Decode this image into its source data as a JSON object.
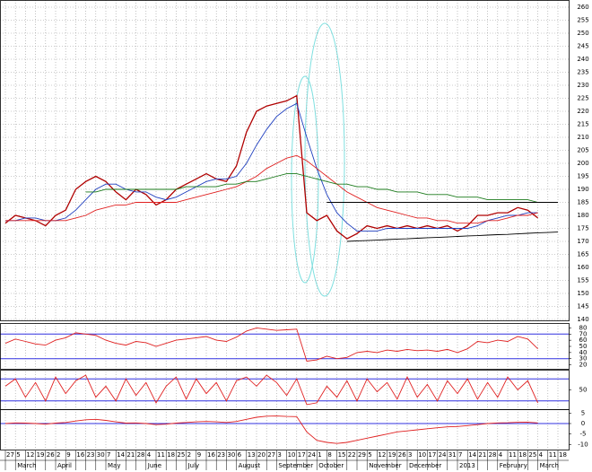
{
  "chart_data": [
    {
      "type": "line",
      "categories": [
        "27",
        "5",
        "12",
        "19",
        "26",
        "2",
        "9",
        "16",
        "23",
        "30",
        "7",
        "14",
        "21",
        "28",
        "4",
        "11",
        "18",
        "25",
        "2",
        "9",
        "16",
        "23",
        "30",
        "6",
        "13",
        "20",
        "27",
        "3",
        "10",
        "17",
        "24",
        "1",
        "8",
        "15",
        "22",
        "29",
        "5",
        "12",
        "19",
        "26",
        "3",
        "10",
        "17",
        "24",
        "31",
        "7",
        "14",
        "21",
        "28",
        "4",
        "11",
        "18",
        "25",
        "4",
        "11",
        "18"
      ],
      "months": [
        null,
        "March",
        null,
        null,
        null,
        "April",
        null,
        null,
        null,
        null,
        "May",
        null,
        null,
        null,
        "June",
        null,
        null,
        null,
        "July",
        null,
        null,
        null,
        null,
        "August",
        null,
        null,
        null,
        "September",
        null,
        null,
        null,
        "October",
        null,
        null,
        null,
        null,
        "November",
        null,
        null,
        null,
        "December",
        null,
        null,
        null,
        null,
        "2013",
        null,
        null,
        null,
        "February",
        null,
        null,
        null,
        "March",
        null,
        null
      ],
      "ylim": [
        140,
        260
      ],
      "yticks": [
        140,
        145,
        150,
        155,
        160,
        165,
        170,
        175,
        180,
        185,
        190,
        195,
        200,
        205,
        210,
        215,
        220,
        225,
        230,
        235,
        240,
        245,
        250,
        255,
        260
      ],
      "grid": true,
      "series": [
        {
          "color": "#b00000",
          "values": [
            177,
            180,
            179,
            178,
            176,
            180,
            182,
            190,
            193,
            195,
            193,
            189,
            186,
            190,
            188,
            184,
            186,
            190,
            192,
            194,
            196,
            194,
            193,
            199,
            212,
            220,
            222,
            223,
            224,
            226,
            181,
            178,
            180,
            174,
            171,
            173,
            176,
            175,
            176,
            175,
            176,
            175,
            176,
            175,
            176,
            174,
            176,
            180,
            180,
            181,
            181,
            183,
            182,
            179,
            null,
            null
          ]
        },
        {
          "color": "#1f3fbf",
          "values": [
            178,
            178,
            179,
            179,
            178,
            178,
            179,
            182,
            186,
            190,
            192,
            192,
            190,
            189,
            189,
            187,
            186,
            187,
            189,
            191,
            193,
            194,
            194,
            195,
            200,
            207,
            213,
            218,
            221,
            223,
            210,
            198,
            188,
            181,
            177,
            174,
            174,
            174,
            175,
            175,
            175,
            175,
            175,
            175,
            175,
            175,
            175,
            176,
            178,
            179,
            180,
            180,
            181,
            181,
            null,
            null
          ]
        },
        {
          "color": "#e02020",
          "values": [
            178,
            178,
            178,
            178,
            178,
            178,
            178,
            179,
            180,
            182,
            183,
            184,
            184,
            185,
            185,
            185,
            185,
            185,
            186,
            187,
            188,
            189,
            190,
            191,
            193,
            195,
            198,
            200,
            202,
            203,
            201,
            198,
            195,
            192,
            189,
            187,
            185,
            183,
            182,
            181,
            180,
            179,
            179,
            178,
            178,
            177,
            177,
            177,
            178,
            178,
            179,
            180,
            180,
            181,
            null,
            null
          ]
        },
        {
          "color": "#1a7a1a",
          "values": [
            null,
            null,
            null,
            null,
            null,
            null,
            null,
            null,
            189,
            189,
            190,
            190,
            190,
            190,
            190,
            190,
            190,
            190,
            191,
            191,
            191,
            191,
            192,
            192,
            193,
            193,
            194,
            195,
            196,
            196,
            195,
            194,
            193,
            192,
            192,
            191,
            191,
            190,
            190,
            189,
            189,
            189,
            188,
            188,
            188,
            187,
            187,
            187,
            186,
            186,
            186,
            186,
            186,
            185,
            null,
            null
          ]
        },
        {
          "color": "#000000",
          "values": [
            null,
            null,
            null,
            null,
            null,
            null,
            null,
            null,
            null,
            null,
            null,
            null,
            null,
            null,
            null,
            null,
            null,
            null,
            null,
            null,
            null,
            null,
            null,
            null,
            null,
            null,
            null,
            null,
            null,
            null,
            null,
            null,
            185,
            185,
            185,
            185,
            185,
            185,
            185,
            185,
            185,
            185,
            185,
            185,
            185,
            185,
            185,
            185,
            185,
            185,
            185,
            185,
            185,
            185,
            185,
            185
          ]
        },
        {
          "color": "#000000",
          "values": [
            null,
            null,
            null,
            null,
            null,
            null,
            null,
            null,
            null,
            null,
            null,
            null,
            null,
            null,
            null,
            null,
            null,
            null,
            null,
            null,
            null,
            null,
            null,
            null,
            null,
            null,
            null,
            null,
            null,
            null,
            null,
            null,
            null,
            null,
            170,
            170.2,
            170.3,
            170.5,
            170.7,
            170.9,
            171,
            171.2,
            171.4,
            171.5,
            171.7,
            171.9,
            172.1,
            172.2,
            172.4,
            172.6,
            172.7,
            172.9,
            173.1,
            173.3,
            173.4,
            173.6
          ]
        }
      ]
    },
    {
      "type": "line",
      "ylim": [
        15,
        85
      ],
      "yticks": [
        80,
        70,
        60,
        50,
        40,
        30,
        20
      ],
      "hlines": [
        70,
        30
      ],
      "hline_color": "#3030e0",
      "series": [
        {
          "color": "#e02020",
          "values": [
            55,
            62,
            58,
            54,
            52,
            60,
            64,
            72,
            70,
            68,
            60,
            55,
            52,
            58,
            56,
            50,
            55,
            60,
            62,
            64,
            66,
            60,
            58,
            65,
            75,
            80,
            78,
            76,
            77,
            78,
            26,
            28,
            34,
            30,
            32,
            40,
            42,
            40,
            44,
            42,
            45,
            43,
            44,
            42,
            45,
            40,
            46,
            58,
            56,
            60,
            58,
            66,
            62,
            46,
            null,
            null
          ]
        }
      ]
    },
    {
      "type": "line",
      "ylim": [
        0,
        100
      ],
      "yticks": [
        50
      ],
      "hlines": [
        80,
        20
      ],
      "hline_color": "#3030e0",
      "series": [
        {
          "color": "#e02020",
          "values": [
            60,
            80,
            30,
            70,
            20,
            85,
            40,
            75,
            90,
            30,
            60,
            20,
            80,
            35,
            70,
            15,
            60,
            85,
            25,
            80,
            40,
            70,
            20,
            75,
            85,
            60,
            90,
            70,
            35,
            80,
            10,
            15,
            60,
            30,
            75,
            20,
            80,
            45,
            70,
            25,
            85,
            30,
            65,
            20,
            75,
            40,
            80,
            25,
            70,
            30,
            85,
            50,
            75,
            15,
            null,
            null
          ]
        }
      ]
    },
    {
      "type": "line",
      "ylim": [
        -12,
        6
      ],
      "yticks": [
        5,
        0,
        -5,
        -10
      ],
      "hlines": [
        0
      ],
      "hline_color": "#3030e0",
      "series": [
        {
          "color": "#e02020",
          "values": [
            0,
            0.3,
            0.2,
            0,
            -0.3,
            0.2,
            0.5,
            1.2,
            1.8,
            2,
            1.5,
            0.8,
            0.2,
            0.3,
            0,
            -0.5,
            -0.3,
            0.2,
            0.5,
            0.8,
            1,
            0.8,
            0.5,
            1,
            2,
            3,
            3.5,
            3.6,
            3.4,
            3.3,
            -4,
            -8,
            -9,
            -9.5,
            -9,
            -8,
            -7,
            -6,
            -5,
            -4,
            -3.5,
            -3,
            -2.5,
            -2,
            -1.6,
            -1.4,
            -1,
            -0.5,
            0,
            0.3,
            0.4,
            0.6,
            0.7,
            0.3,
            null,
            null
          ]
        }
      ]
    }
  ]
}
